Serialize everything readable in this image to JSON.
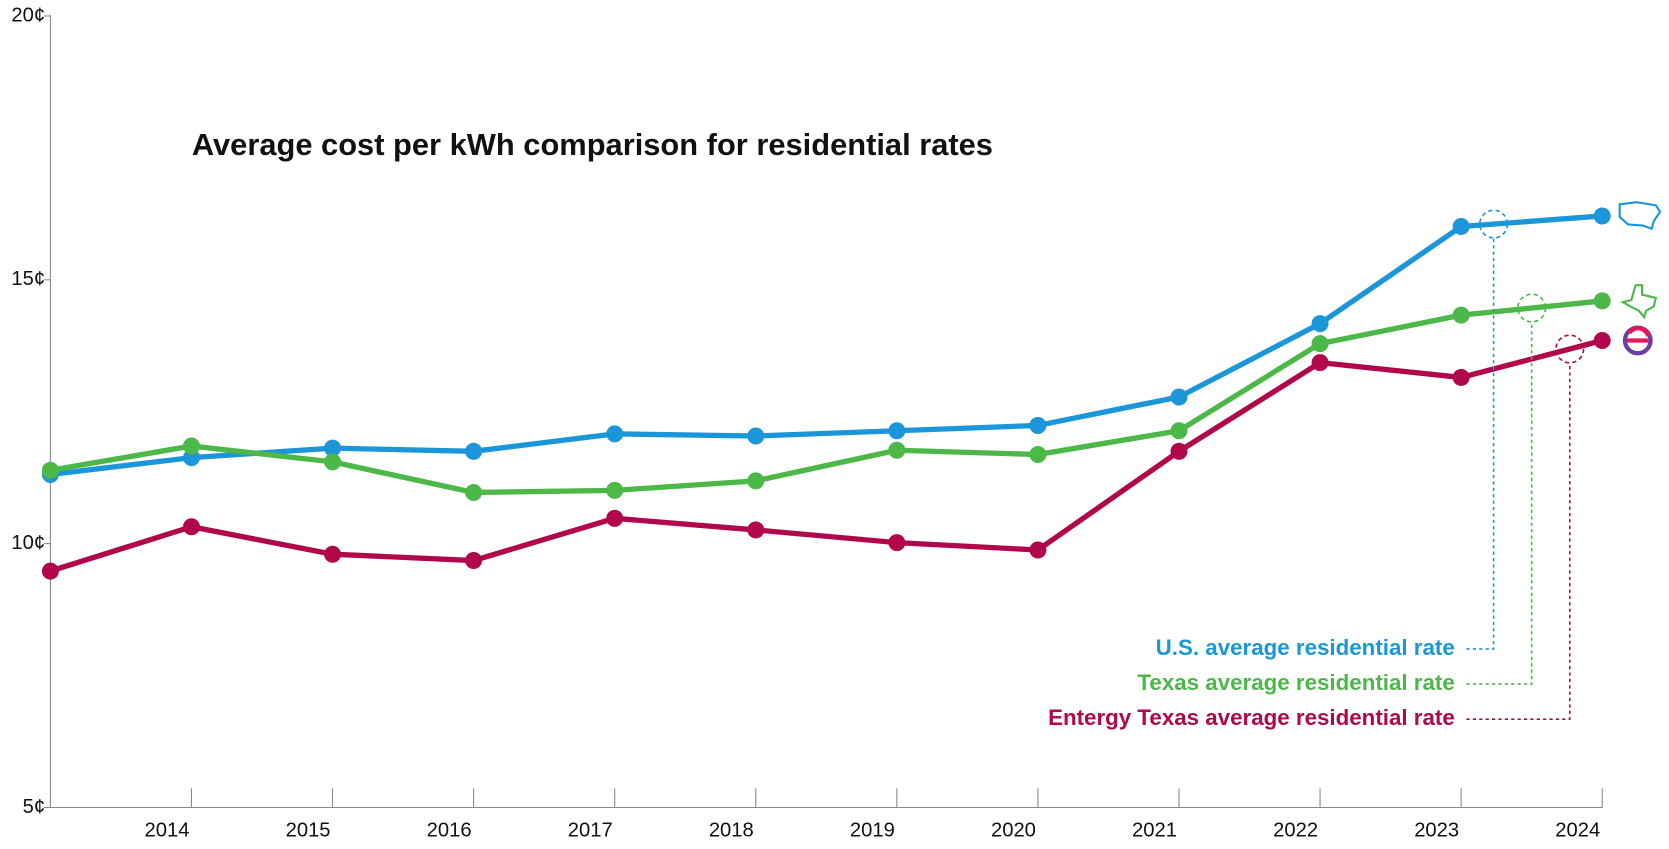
{
  "chart_data": {
    "type": "line",
    "title": "Average cost per kWh comparison for residential rates",
    "categories": [
      null,
      "2014",
      "2015",
      "2016",
      "2017",
      "2018",
      "2019",
      "2020",
      "2021",
      "2022",
      "2023",
      "2024"
    ],
    "ylim": [
      5,
      20
    ],
    "yticks": [
      {
        "value": 5,
        "label": "5¢"
      },
      {
        "value": 10,
        "label": "10¢"
      },
      {
        "value": 15,
        "label": "15¢"
      },
      {
        "value": 20,
        "label": "20¢"
      }
    ],
    "series": [
      {
        "name": "U.S. average residential rate",
        "color": "#1a96d9",
        "values": [
          11.31,
          11.63,
          11.81,
          11.75,
          12.08,
          12.04,
          12.14,
          12.24,
          12.78,
          14.17,
          16.01,
          16.21
        ]
      },
      {
        "name": "Texas average residential rate",
        "color": "#4cb848",
        "values": [
          11.39,
          11.85,
          11.55,
          10.97,
          11.01,
          11.19,
          11.77,
          11.69,
          12.14,
          13.79,
          14.33,
          14.6
        ]
      },
      {
        "name": "Entergy Texas average residential rate",
        "color": "#b0084a",
        "values": [
          9.48,
          10.32,
          9.8,
          9.68,
          10.48,
          10.26,
          10.02,
          9.88,
          11.75,
          13.43,
          13.15,
          13.85
        ]
      }
    ]
  }
}
